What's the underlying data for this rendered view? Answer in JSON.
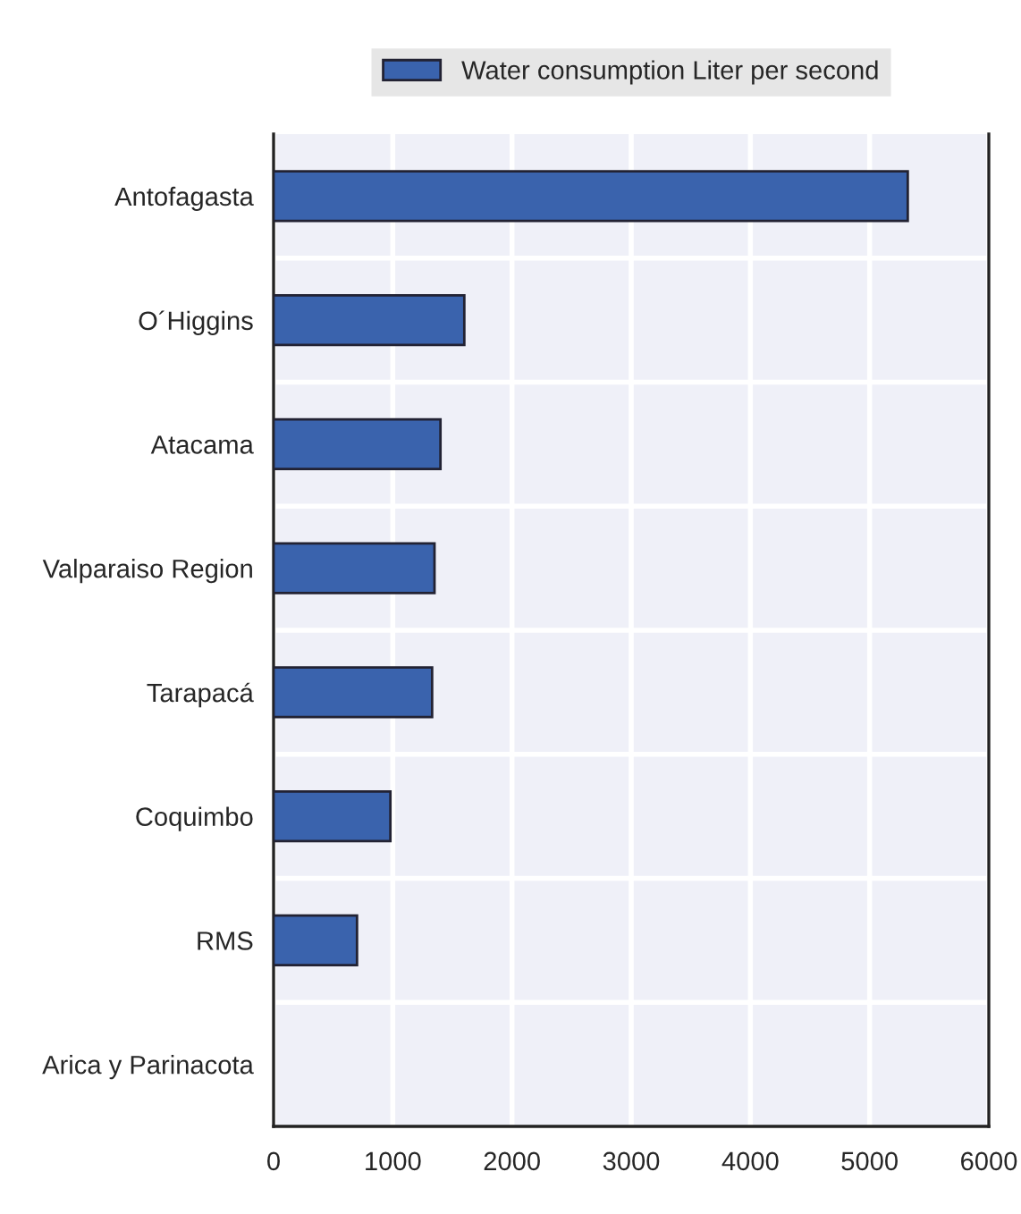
{
  "chart_data": {
    "type": "bar",
    "orientation": "horizontal",
    "categories": [
      "Antofagasta",
      "O´Higgins",
      "Atacama",
      "Valparaiso Region",
      "Tarapacá",
      "Coquimbo",
      "RMS",
      "Arica y Parinacota"
    ],
    "series": [
      {
        "name": "Water consumption Liter per second",
        "color": "#3a63ad",
        "values": [
          5320,
          1600,
          1400,
          1350,
          1330,
          980,
          700,
          0
        ]
      }
    ],
    "xlim": [
      0,
      6000
    ],
    "xticks": [
      0,
      1000,
      2000,
      3000,
      4000,
      5000,
      6000
    ],
    "grid": true,
    "legend": "top"
  }
}
